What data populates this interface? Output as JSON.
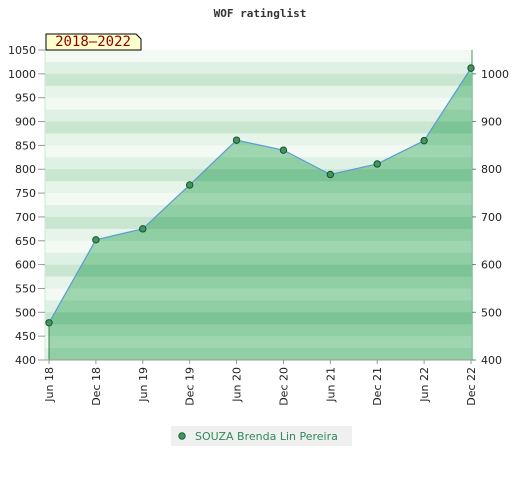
{
  "chart_data": {
    "type": "area",
    "title": "WOF ratinglist",
    "period_badge": "2018–2022",
    "categories": [
      "Jun 18",
      "Dec 18",
      "Jun 19",
      "Dec 19",
      "Jun 20",
      "Dec 20",
      "Jun 21",
      "Dec 21",
      "Jun 22",
      "Dec 22"
    ],
    "series": [
      {
        "name": "SOUZA Brenda Lin Pereira",
        "values": [
          478,
          652,
          675,
          767,
          861,
          840,
          789,
          811,
          860,
          1012
        ]
      }
    ],
    "left_axis": {
      "ylim": [
        400,
        1050
      ],
      "ticks": [
        400,
        450,
        500,
        550,
        600,
        650,
        700,
        750,
        800,
        850,
        900,
        950,
        1000,
        1050
      ]
    },
    "right_axis": {
      "ylim": [
        400,
        1050
      ],
      "ticks": [
        400,
        500,
        600,
        700,
        800,
        900,
        1000
      ]
    },
    "colors": {
      "line": "#5b9bd5",
      "fill": "#7cc495",
      "marker": "#3c9a5f",
      "legend_text": "#2e8b57"
    },
    "legend_position": "bottom-center",
    "grid": "horizontal-bands"
  }
}
